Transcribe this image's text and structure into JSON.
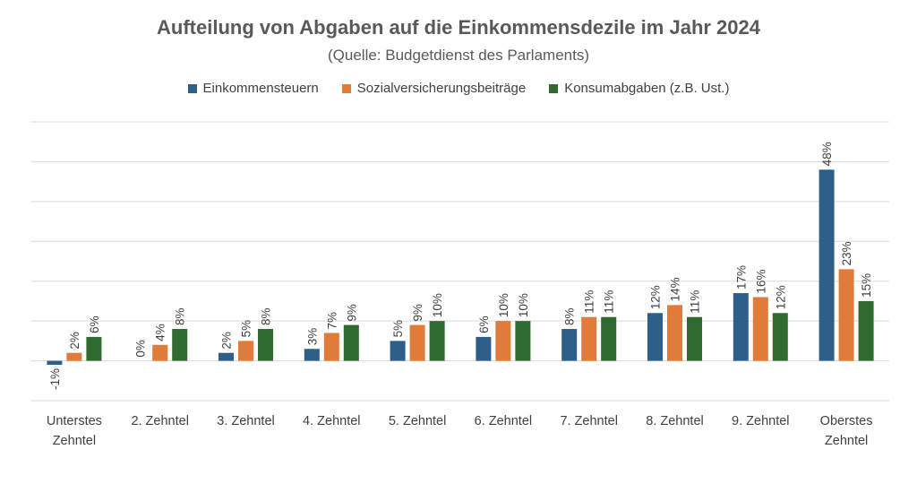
{
  "colors": {
    "einkommensteuern": "#2e5f8a",
    "sozialversicherung": "#e07b39",
    "konsumabgaben": "#2f6b2f",
    "grid": "#d9d9d9"
  },
  "chart_data": {
    "type": "bar",
    "title": "Aufteilung von Abgaben auf die Einkommensdezile im Jahr 2024",
    "subtitle": "(Quelle: Budgetdienst des Parlaments)",
    "categories": [
      "Unterstes Zehntel",
      "2. Zehntel",
      "3. Zehntel",
      "4. Zehntel",
      "5. Zehntel",
      "6. Zehntel",
      "7. Zehntel",
      "8. Zehntel",
      "9. Zehntel",
      "Oberstes Zehntel"
    ],
    "series": [
      {
        "name": "Einkommensteuern",
        "values": [
          -1,
          0,
          2,
          3,
          5,
          6,
          8,
          12,
          17,
          48
        ]
      },
      {
        "name": "Sozialversicherungsbeiträge",
        "values": [
          2,
          4,
          5,
          7,
          9,
          10,
          11,
          14,
          16,
          23
        ]
      },
      {
        "name": "Konsumabgaben (z.B. Ust.)",
        "values": [
          6,
          8,
          8,
          9,
          10,
          10,
          11,
          11,
          12,
          15
        ]
      }
    ],
    "value_suffix": "%",
    "ylim": [
      -10,
      60
    ],
    "y_gridlines": [
      -10,
      0,
      10,
      20,
      30,
      40,
      50,
      60
    ],
    "legend_position": "top",
    "grid": true
  }
}
